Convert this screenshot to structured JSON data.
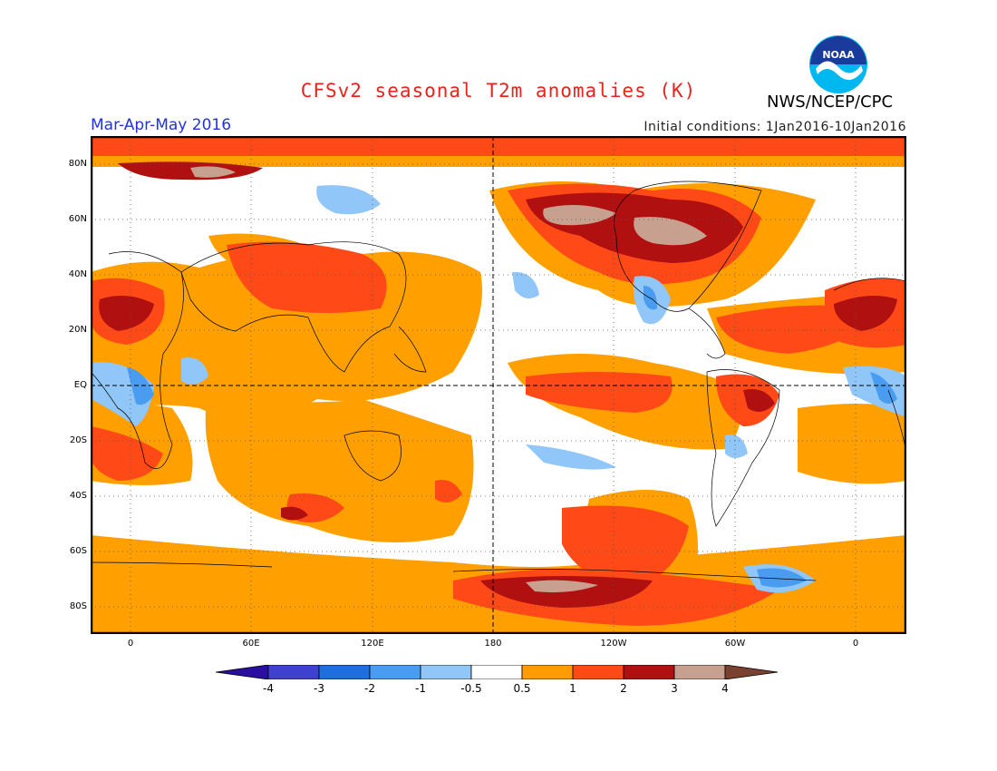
{
  "header": {
    "title": "CFSv2 seasonal T2m anomalies (K)",
    "period": "Mar-Apr-May 2016",
    "initial_conditions": "Initial conditions: 1Jan2016-10Jan2016",
    "agency": "NWS/NCEP/CPC",
    "logo_text": "NOAA"
  },
  "map": {
    "latitude_labels": [
      "80N",
      "60N",
      "40N",
      "20N",
      "EQ",
      "20S",
      "40S",
      "60S",
      "80S"
    ],
    "longitude_labels": [
      "0",
      "60E",
      "120E",
      "180",
      "120W",
      "60W",
      "0"
    ]
  },
  "legend": {
    "labels": [
      "-4",
      "-3",
      "-2",
      "-1",
      "-0.5",
      "0.5",
      "1",
      "2",
      "3",
      "4"
    ],
    "colors": [
      "#2a0ea0",
      "#4040d0",
      "#1e6ee0",
      "#4a9cf0",
      "#90c6f8",
      "#ffffff",
      "#ff9c00",
      "#ff4a18",
      "#b01010",
      "#c8a090",
      "#7a4030"
    ]
  }
}
